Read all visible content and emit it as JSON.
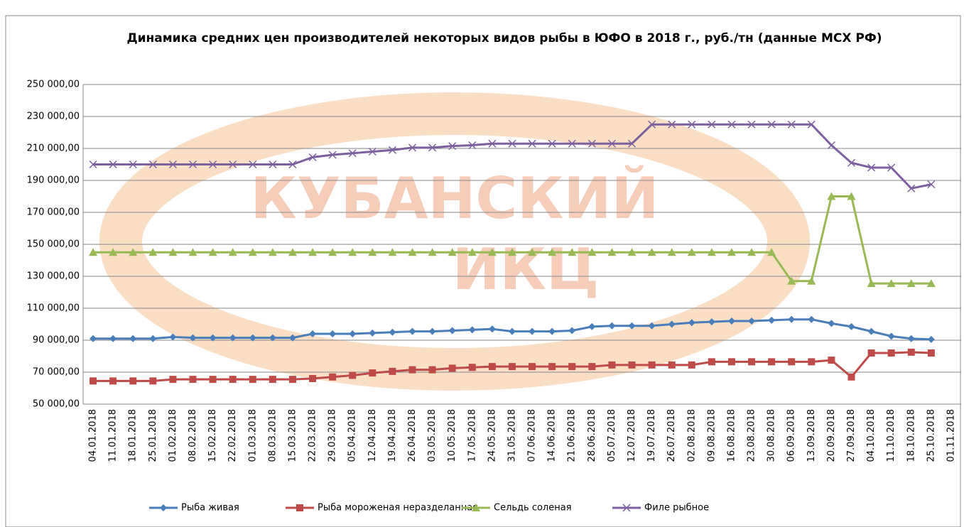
{
  "chart_data": {
    "type": "line",
    "title": "Динамика средних цен производителей некоторых видов рыбы в ЮФО в 2018 г., руб./тн (данные МСХ РФ)",
    "watermark": [
      "КУБАНСКИЙ",
      "ИКЦ"
    ],
    "categories": [
      "04.01.2018",
      "11.01.2018",
      "18.01.2018",
      "25.01.2018",
      "01.02.2018",
      "08.02.2018",
      "15.02.2018",
      "22.02.2018",
      "01.03.2018",
      "08.03.2018",
      "15.03.2018",
      "22.03.2018",
      "29.03.2018",
      "05.04.2018",
      "12.04.2018",
      "19.04.2018",
      "26.04.2018",
      "03.05.2018",
      "10.05.2018",
      "17.05.2018",
      "24.05.2018",
      "31.05.2018",
      "07.06.2018",
      "14.06.2018",
      "21.06.2018",
      "28.06.2018",
      "05.07.2018",
      "12.07.2018",
      "19.07.2018",
      "26.07.2018",
      "02.08.2018",
      "09.08.2018",
      "16.08.2018",
      "23.08.2018",
      "30.08.2018",
      "06.09.2018",
      "13.09.2018",
      "20.09.2018",
      "27.09.2018",
      "04.10.2018",
      "11.10.2018",
      "18.10.2018",
      "25.10.2018",
      "01.11.2018"
    ],
    "series": [
      {
        "name": "Рыба живая",
        "color": "#4a7ebb",
        "marker": "diamond",
        "values": [
          91000,
          91000,
          91000,
          91000,
          92000,
          91500,
          91500,
          91500,
          91500,
          91500,
          91500,
          94000,
          94000,
          94000,
          94500,
          95000,
          95500,
          95500,
          96000,
          96500,
          97000,
          95500,
          95500,
          95500,
          96000,
          98500,
          99000,
          99000,
          99000,
          100000,
          101000,
          101500,
          102000,
          102000,
          102500,
          103000,
          103000,
          100500,
          98500,
          95500,
          92500,
          91000,
          90500,
          null
        ]
      },
      {
        "name": "Рыба мороженая неразделанная",
        "color": "#be4b48",
        "marker": "square",
        "values": [
          64500,
          64500,
          64500,
          64500,
          65500,
          65500,
          65500,
          65500,
          65500,
          65500,
          65500,
          66000,
          67000,
          68000,
          69500,
          70500,
          71500,
          71500,
          72500,
          73000,
          73500,
          73500,
          73500,
          73500,
          73500,
          73500,
          74500,
          74500,
          74500,
          74500,
          74500,
          76500,
          76500,
          76500,
          76500,
          76500,
          76500,
          77500,
          67000,
          82000,
          82000,
          82500,
          82000,
          null
        ]
      },
      {
        "name": "Сельдь соленая",
        "color": "#98b954",
        "marker": "triangle",
        "values": [
          145000,
          145000,
          145000,
          145000,
          145000,
          145000,
          145000,
          145000,
          145000,
          145000,
          145000,
          145000,
          145000,
          145000,
          145000,
          145000,
          145000,
          145000,
          145000,
          145000,
          145000,
          145000,
          145000,
          145000,
          145000,
          145000,
          145000,
          145000,
          145000,
          145000,
          145000,
          145000,
          145000,
          145000,
          145000,
          127000,
          127000,
          180000,
          180000,
          125500,
          125500,
          125500,
          125500,
          null
        ]
      },
      {
        "name": "Филе рыбное",
        "color": "#7d60a0",
        "marker": "x",
        "values": [
          200000,
          200000,
          200000,
          200000,
          200000,
          200000,
          200000,
          200000,
          200000,
          200000,
          200000,
          204500,
          206000,
          207000,
          208000,
          209000,
          210500,
          210500,
          211500,
          212000,
          213000,
          213000,
          213000,
          213000,
          213000,
          213000,
          213000,
          213000,
          225000,
          225000,
          225000,
          225000,
          225000,
          225000,
          225000,
          225000,
          225000,
          212000,
          201000,
          198000,
          198000,
          185000,
          187500,
          null
        ]
      }
    ],
    "ylim": [
      50000,
      250000
    ],
    "yticks": [
      {
        "value": 50000,
        "label": "50 000,00"
      },
      {
        "value": 70000,
        "label": "70 000,00"
      },
      {
        "value": 90000,
        "label": "90 000,00"
      },
      {
        "value": 110000,
        "label": "110 000,00"
      },
      {
        "value": 130000,
        "label": "130 000,00"
      },
      {
        "value": 150000,
        "label": "150 000,00"
      },
      {
        "value": 170000,
        "label": "170 000,00"
      },
      {
        "value": 190000,
        "label": "190 000,00"
      },
      {
        "value": 210000,
        "label": "210 000,00"
      },
      {
        "value": 230000,
        "label": "230 000,00"
      },
      {
        "value": 250000,
        "label": "250 000,00"
      }
    ],
    "grid": true,
    "legend": "bottom"
  }
}
